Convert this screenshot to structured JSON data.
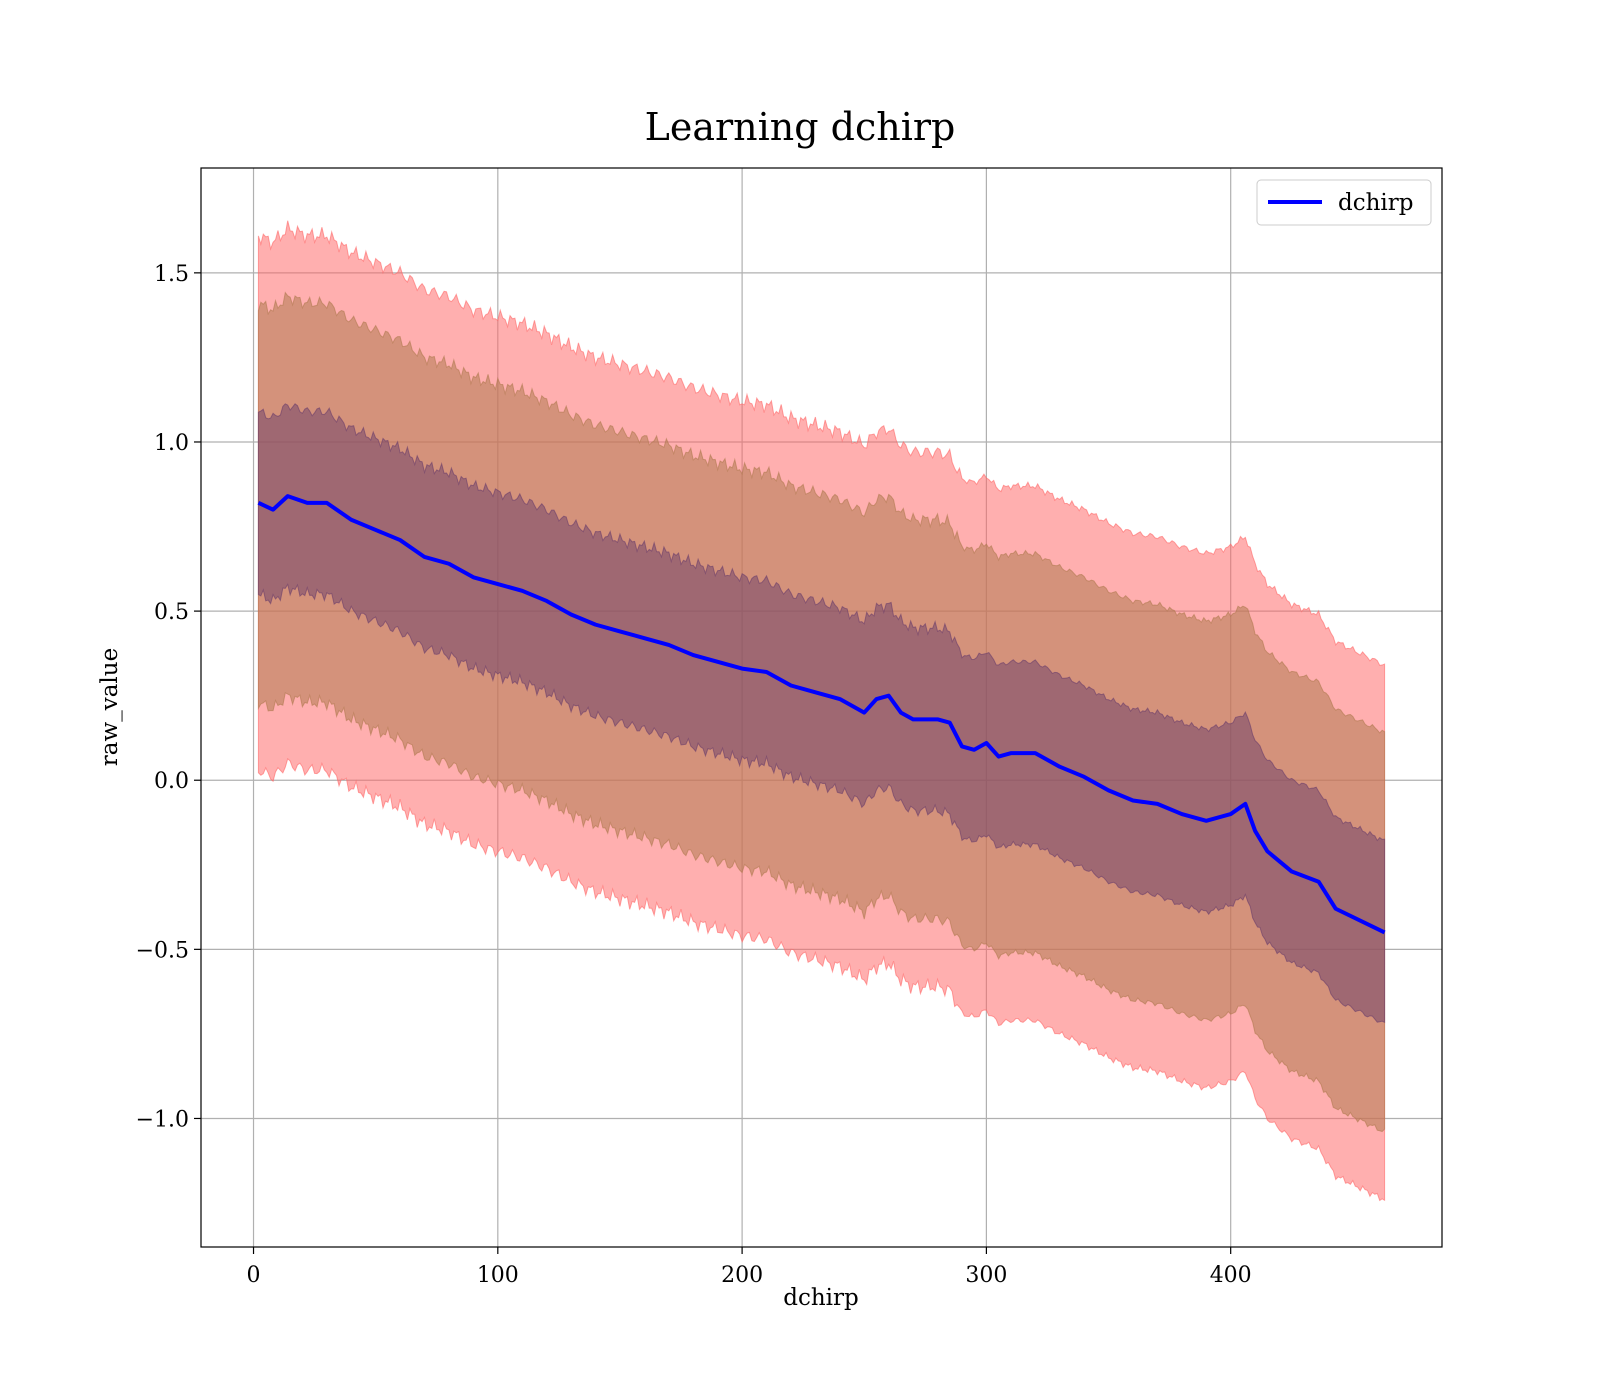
{
  "chart_data": {
    "type": "line",
    "title": "Learning dchirp",
    "xlabel": "dchirp",
    "ylabel": "raw_value",
    "xlim": [
      -21.5,
      486.5
    ],
    "ylim": [
      -1.38,
      1.81
    ],
    "x_ticks": [
      0,
      100,
      200,
      300,
      400
    ],
    "y_ticks": [
      -1.0,
      -0.5,
      0.0,
      0.5,
      1.0,
      1.5
    ],
    "y_tick_labels": [
      "−1.0",
      "−0.5",
      "0.0",
      "0.5",
      "1.0",
      "1.5"
    ],
    "grid": true,
    "legend": {
      "position": "top-right",
      "entries": [
        "dchirp"
      ]
    },
    "x_range": [
      2,
      463
    ],
    "series": [
      {
        "name": "dchirp",
        "color": "#0000ff",
        "points": [
          [
            2,
            0.82
          ],
          [
            8,
            0.8
          ],
          [
            14,
            0.84
          ],
          [
            22,
            0.82
          ],
          [
            30,
            0.82
          ],
          [
            40,
            0.77
          ],
          [
            50,
            0.74
          ],
          [
            60,
            0.71
          ],
          [
            70,
            0.66
          ],
          [
            80,
            0.64
          ],
          [
            90,
            0.6
          ],
          [
            100,
            0.58
          ],
          [
            110,
            0.56
          ],
          [
            120,
            0.53
          ],
          [
            130,
            0.49
          ],
          [
            140,
            0.46
          ],
          [
            150,
            0.44
          ],
          [
            160,
            0.42
          ],
          [
            170,
            0.4
          ],
          [
            180,
            0.37
          ],
          [
            190,
            0.35
          ],
          [
            200,
            0.33
          ],
          [
            210,
            0.32
          ],
          [
            220,
            0.28
          ],
          [
            230,
            0.26
          ],
          [
            240,
            0.24
          ],
          [
            250,
            0.2
          ],
          [
            255,
            0.24
          ],
          [
            260,
            0.25
          ],
          [
            265,
            0.2
          ],
          [
            270,
            0.18
          ],
          [
            280,
            0.18
          ],
          [
            285,
            0.17
          ],
          [
            290,
            0.1
          ],
          [
            295,
            0.09
          ],
          [
            300,
            0.11
          ],
          [
            305,
            0.07
          ],
          [
            310,
            0.08
          ],
          [
            320,
            0.08
          ],
          [
            330,
            0.04
          ],
          [
            340,
            0.01
          ],
          [
            350,
            -0.03
          ],
          [
            360,
            -0.06
          ],
          [
            370,
            -0.07
          ],
          [
            380,
            -0.1
          ],
          [
            390,
            -0.12
          ],
          [
            400,
            -0.1
          ],
          [
            406,
            -0.07
          ],
          [
            410,
            -0.15
          ],
          [
            415,
            -0.21
          ],
          [
            425,
            -0.27
          ],
          [
            436,
            -0.3
          ],
          [
            443,
            -0.38
          ],
          [
            463,
            -0.45
          ]
        ]
      }
    ],
    "bands": [
      {
        "name": "outer",
        "color": "#ff6666",
        "opacity": 0.52,
        "offset_upper": 0.79,
        "offset_lower": 0.79,
        "noise": 0.025
      },
      {
        "name": "middle",
        "color": "#b07a50",
        "opacity": 0.55,
        "offset_upper": 0.59,
        "offset_lower": 0.59,
        "noise": 0.022
      },
      {
        "name": "inner",
        "color": "#6a3d6a",
        "opacity": 0.5,
        "offset_upper": 0.27,
        "offset_lower": 0.27,
        "noise": 0.02
      }
    ]
  }
}
